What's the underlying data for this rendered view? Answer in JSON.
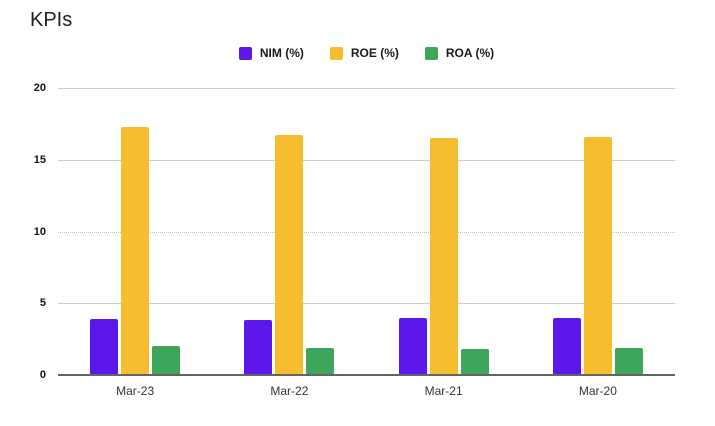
{
  "chart_data": {
    "type": "bar",
    "title": "KPIs",
    "categories": [
      "Mar-23",
      "Mar-22",
      "Mar-21",
      "Mar-20"
    ],
    "series": [
      {
        "name": "NIM (%)",
        "color": "#5E17EB",
        "values": [
          3.9,
          3.8,
          4.0,
          4.0
        ]
      },
      {
        "name": "ROE (%)",
        "color": "#F6BE2E",
        "values": [
          17.3,
          16.7,
          16.5,
          16.6
        ]
      },
      {
        "name": "ROA (%)",
        "color": "#3EA65A",
        "values": [
          2.0,
          1.9,
          1.8,
          1.9
        ]
      }
    ],
    "xlabel": "",
    "ylabel": "",
    "ylim": [
      0,
      20
    ],
    "yticks": [
      0,
      5,
      10,
      15,
      20
    ],
    "gridlines": [
      {
        "value": 20,
        "style": "solid"
      },
      {
        "value": 15,
        "style": "solid"
      },
      {
        "value": 10,
        "style": "dotted"
      },
      {
        "value": 5,
        "style": "solid"
      }
    ],
    "baseline_value": 0,
    "grid": "horizontal",
    "legend_position": "top",
    "colors": {
      "background": "#ffffff",
      "gridline": "#cccccc",
      "axis_line": "#636363",
      "title_text": "#212121",
      "tick_text": "#111111"
    }
  }
}
